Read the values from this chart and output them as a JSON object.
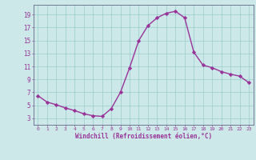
{
  "x": [
    0,
    1,
    2,
    3,
    4,
    5,
    6,
    7,
    8,
    9,
    10,
    11,
    12,
    13,
    14,
    15,
    16,
    17,
    18,
    19,
    20,
    21,
    22,
    23
  ],
  "y": [
    6.5,
    5.5,
    5.1,
    4.6,
    4.2,
    3.7,
    3.4,
    3.3,
    4.5,
    7.0,
    10.8,
    15.0,
    17.3,
    18.5,
    19.2,
    19.5,
    18.5,
    13.2,
    11.2,
    10.8,
    10.2,
    9.8,
    9.5,
    8.5
  ],
  "line_color": "#993399",
  "marker": "D",
  "markersize": 2.2,
  "linewidth": 1.0,
  "bg_color": "#cce8e8",
  "grid_color": "#99cccc",
  "xlabel": "Windchill (Refroidissement éolien,°C)",
  "xlabel_color": "#993399",
  "tick_color": "#993399",
  "ylabel_ticks": [
    3,
    5,
    7,
    9,
    11,
    13,
    15,
    17,
    19
  ],
  "xlim": [
    -0.5,
    23.5
  ],
  "ylim": [
    2.0,
    20.5
  ],
  "xticks": [
    0,
    1,
    2,
    3,
    4,
    5,
    6,
    7,
    8,
    9,
    10,
    11,
    12,
    13,
    14,
    15,
    16,
    17,
    18,
    19,
    20,
    21,
    22,
    23
  ]
}
